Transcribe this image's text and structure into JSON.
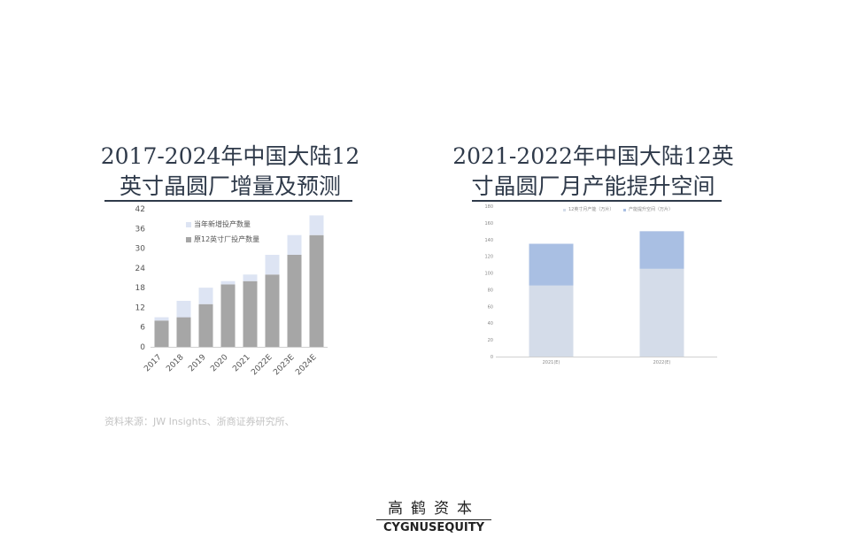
{
  "left_title_line1": "2017-2024年中国大陆12",
  "left_title_line2": "英寸晶圆厂增量及预测",
  "right_title_line1": "2021-2022年中国大陆12英",
  "right_title_line2": "寸晶圆厂月产能提升空间",
  "source_note": "资料来源：JW Insights、浙商证券研究所、",
  "logo_cn": "高鹤资本",
  "logo_en": "CYGNUSEQUITY",
  "colors": {
    "base": "#a6a6a6",
    "increment": "#dde4f3",
    "right_base": "#d4dce9",
    "right_increment": "#a9bfe3"
  },
  "chart_data": [
    {
      "type": "bar",
      "stacked": true,
      "categories": [
        "2017",
        "2018",
        "2019",
        "2020",
        "2021",
        "2022E",
        "2023E",
        "2024E"
      ],
      "series": [
        {
          "name": "原12英寸厂投产数量",
          "values": [
            8,
            9,
            13,
            19,
            20,
            22,
            28,
            34
          ]
        },
        {
          "name": "当年新增投产数量",
          "values": [
            1,
            5,
            5,
            1,
            2,
            6,
            6,
            6
          ]
        }
      ],
      "yticks": [
        0,
        6,
        12,
        18,
        24,
        30,
        36,
        42
      ],
      "ylim": [
        0,
        42
      ],
      "legend": "top-left",
      "grid": false
    },
    {
      "type": "bar",
      "stacked": true,
      "categories": [
        "2021(E)",
        "2022(E)"
      ],
      "series": [
        {
          "name": "12英寸月产能（万片）",
          "values": [
            85,
            105
          ]
        },
        {
          "name": "产能提升空间（万片）",
          "values": [
            50,
            45
          ]
        }
      ],
      "yticks": [
        0,
        20,
        40,
        60,
        80,
        100,
        120,
        140,
        160,
        180
      ],
      "ylim": [
        0,
        180
      ],
      "legend": "top-center",
      "grid": false
    }
  ]
}
